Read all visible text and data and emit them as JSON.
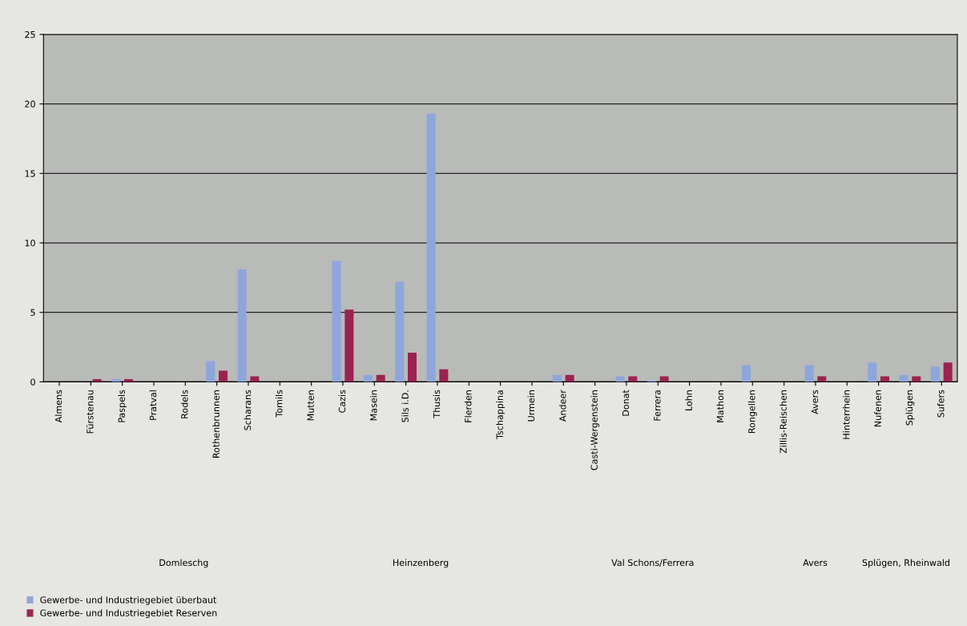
{
  "chart_data": {
    "type": "bar",
    "categories": [
      "Almens",
      "Fürstenau",
      "Paspels",
      "Pratval",
      "Rodels",
      "Rothenbrunnen",
      "Scharans",
      "Tomils",
      "Mutten",
      "Cazis",
      "Masein",
      "Sils i.D.",
      "Thusis",
      "Flerden",
      "Tschappina",
      "Urmein",
      "Andeer",
      "Casti-Wergenstein",
      "Donat",
      "Ferrera",
      "Lohn",
      "Mathon",
      "Rongellen",
      "Zillis-Reischen",
      "Avers",
      "Hinterrhein",
      "Nufenen",
      "Splügen",
      "Sufers"
    ],
    "series": [
      {
        "name": "Gewerbe- und Industriegebiet überbaut",
        "color": "#8fa6dc",
        "values": [
          0,
          0,
          0.2,
          0,
          0,
          1.5,
          8.1,
          0,
          0,
          8.7,
          0.5,
          7.2,
          19.3,
          0,
          0,
          0,
          0.5,
          0,
          0.4,
          0.1,
          0,
          0,
          1.2,
          0,
          1.2,
          0,
          1.4,
          0.5,
          1.1
        ]
      },
      {
        "name": "Gewerbe- und Industriegebiet Reserven",
        "color": "#9b2350",
        "values": [
          0,
          0.2,
          0.2,
          0,
          0,
          0.8,
          0.4,
          0,
          0,
          5.2,
          0.5,
          2.1,
          0.9,
          0,
          0,
          0,
          0.5,
          0,
          0.4,
          0.4,
          0,
          0,
          0,
          0,
          0.4,
          0,
          0.4,
          0.4,
          1.4
        ]
      }
    ],
    "ylim": [
      0,
      25
    ],
    "yticks": [
      0,
      5,
      10,
      15,
      20,
      25
    ],
    "grid": "y",
    "legend": "bottom left",
    "annotations": [
      "Domleschg",
      "Heinzenberg",
      "Val Schons/Ferrera",
      "Avers",
      "Splügen, Rheinwald"
    ]
  }
}
